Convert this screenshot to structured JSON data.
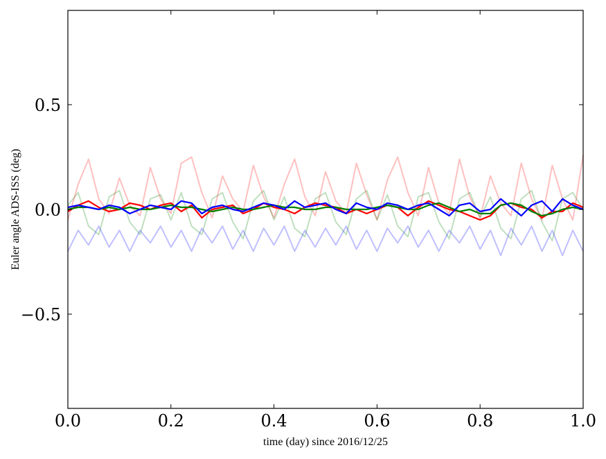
{
  "chart_data": {
    "type": "line",
    "xlabel": "time (day) since 2016/12/25",
    "ylabel": "Euler angle ADS-ISS (deg)",
    "xlim": [
      0.0,
      1.0
    ],
    "ylim": [
      -0.95,
      0.95
    ],
    "xticks": [
      0.0,
      0.2,
      0.4,
      0.6,
      0.8,
      1.0
    ],
    "xtick_labels": [
      "0.0",
      "0.2",
      "0.4",
      "0.6",
      "0.8",
      "1.0"
    ],
    "yticks": [
      -0.5,
      0.0,
      0.5
    ],
    "ytick_labels": [
      "−0.5",
      "0.0",
      "0.5"
    ],
    "grid": false,
    "legend": "none",
    "x": [
      0.0,
      0.02,
      0.04,
      0.06,
      0.08,
      0.1,
      0.12,
      0.14,
      0.16,
      0.18,
      0.2,
      0.22,
      0.24,
      0.26,
      0.28,
      0.3,
      0.32,
      0.34,
      0.36,
      0.38,
      0.4,
      0.42,
      0.44,
      0.46,
      0.48,
      0.5,
      0.52,
      0.54,
      0.56,
      0.58,
      0.6,
      0.62,
      0.64,
      0.66,
      0.68,
      0.7,
      0.72,
      0.74,
      0.76,
      0.78,
      0.8,
      0.82,
      0.84,
      0.86,
      0.88,
      0.9,
      0.92,
      0.94,
      0.96,
      0.98,
      1.0
    ],
    "series": [
      {
        "color": "#ff0000",
        "alpha": 0.25,
        "values": [
          -0.05,
          0.12,
          0.24,
          0.05,
          -0.02,
          0.15,
          0.02,
          -0.03,
          0.2,
          0.05,
          -0.02,
          0.22,
          0.25,
          0.08,
          -0.04,
          0.16,
          0.05,
          -0.01,
          0.21,
          0.06,
          -0.04,
          0.12,
          0.24,
          0.06,
          -0.03,
          0.18,
          0.04,
          -0.02,
          0.22,
          0.07,
          -0.05,
          0.14,
          0.25,
          0.08,
          -0.03,
          0.2,
          0.03,
          -0.02,
          0.24,
          0.06,
          -0.04,
          0.16,
          0.03,
          -0.03,
          0.22,
          0.05,
          -0.05,
          0.21,
          0.05,
          -0.05,
          0.26
        ]
      },
      {
        "color": "#008000",
        "alpha": 0.25,
        "values": [
          0.02,
          0.08,
          -0.08,
          -0.12,
          0.06,
          0.09,
          -0.06,
          -0.12,
          0.05,
          0.07,
          -0.05,
          0.08,
          -0.08,
          -0.12,
          0.05,
          0.08,
          -0.06,
          -0.14,
          0.04,
          0.09,
          -0.05,
          0.06,
          -0.09,
          -0.13,
          0.05,
          0.08,
          -0.06,
          -0.12,
          0.05,
          0.09,
          -0.05,
          0.07,
          -0.08,
          -0.13,
          0.06,
          0.08,
          -0.06,
          -0.14,
          0.05,
          0.08,
          -0.04,
          0.06,
          -0.09,
          -0.14,
          0.05,
          0.09,
          -0.06,
          -0.15,
          0.05,
          0.08,
          0.0
        ]
      },
      {
        "color": "#0000ff",
        "alpha": 0.25,
        "values": [
          -0.2,
          -0.1,
          -0.17,
          -0.08,
          -0.18,
          -0.1,
          -0.2,
          -0.1,
          -0.16,
          -0.08,
          -0.18,
          -0.1,
          -0.2,
          -0.09,
          -0.16,
          -0.08,
          -0.19,
          -0.1,
          -0.2,
          -0.09,
          -0.17,
          -0.08,
          -0.2,
          -0.1,
          -0.18,
          -0.09,
          -0.17,
          -0.08,
          -0.19,
          -0.1,
          -0.2,
          -0.09,
          -0.16,
          -0.08,
          -0.18,
          -0.1,
          -0.2,
          -0.1,
          -0.16,
          -0.08,
          -0.19,
          -0.1,
          -0.22,
          -0.09,
          -0.17,
          -0.08,
          -0.2,
          -0.1,
          -0.22,
          -0.1,
          -0.2
        ]
      },
      {
        "color": "#ff0000",
        "alpha": 1.0,
        "values": [
          -0.01,
          0.02,
          0.04,
          0.01,
          -0.01,
          0.0,
          0.03,
          0.02,
          0.0,
          0.02,
          0.03,
          -0.01,
          0.02,
          -0.04,
          0.0,
          0.01,
          0.02,
          -0.02,
          0.0,
          0.03,
          0.01,
          0.0,
          -0.02,
          0.01,
          0.03,
          0.02,
          0.01,
          -0.02,
          0.0,
          -0.02,
          0.0,
          0.02,
          0.01,
          -0.03,
          0.01,
          0.04,
          0.02,
          0.0,
          -0.01,
          -0.03,
          -0.05,
          -0.03,
          0.02,
          0.03,
          0.01,
          0.0,
          -0.04,
          -0.01,
          -0.01,
          0.03,
          0.01
        ]
      },
      {
        "color": "#008000",
        "alpha": 1.0,
        "values": [
          0.0,
          0.01,
          0.01,
          0.0,
          0.01,
          0.0,
          0.01,
          0.0,
          0.0,
          0.01,
          0.02,
          0.01,
          0.01,
          0.0,
          -0.01,
          0.0,
          0.01,
          0.0,
          0.0,
          0.01,
          0.02,
          0.01,
          0.01,
          0.0,
          0.0,
          0.01,
          0.01,
          0.0,
          0.0,
          0.0,
          0.01,
          0.02,
          0.01,
          0.0,
          0.0,
          0.02,
          0.03,
          0.01,
          -0.01,
          0.0,
          -0.02,
          -0.02,
          0.02,
          0.03,
          0.02,
          -0.01,
          -0.03,
          -0.02,
          0.0,
          0.01,
          0.0
        ]
      },
      {
        "color": "#0000ff",
        "alpha": 1.0,
        "values": [
          0.01,
          0.02,
          0.01,
          0.0,
          0.02,
          0.01,
          -0.02,
          0.0,
          0.02,
          0.01,
          0.0,
          0.04,
          0.03,
          -0.02,
          0.01,
          0.02,
          0.0,
          -0.01,
          0.01,
          0.03,
          0.02,
          0.0,
          0.04,
          0.01,
          0.02,
          0.03,
          0.0,
          -0.02,
          0.03,
          0.01,
          0.0,
          0.03,
          0.02,
          0.0,
          0.02,
          0.03,
          0.0,
          -0.03,
          0.02,
          0.03,
          -0.01,
          0.0,
          0.05,
          0.01,
          -0.03,
          0.02,
          0.04,
          -0.01,
          0.05,
          0.02,
          0.0
        ]
      }
    ]
  }
}
